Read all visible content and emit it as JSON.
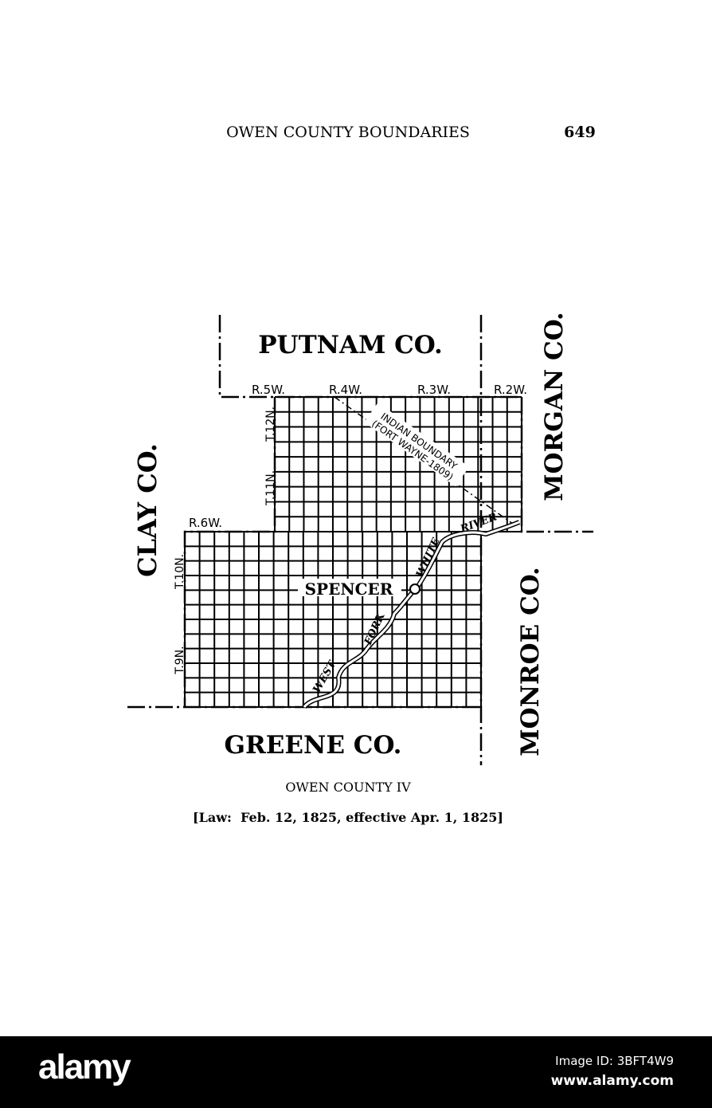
{
  "header": {
    "title": "OWEN COUNTY BOUNDARIES",
    "page_number": "649"
  },
  "map": {
    "counties": {
      "north": "PUTNAM CO.",
      "west": "CLAY CO.",
      "east_upper": "MORGAN CO.",
      "east_lower": "MONROE CO.",
      "south": "GREENE CO."
    },
    "ranges": [
      "R.6W.",
      "R.5W.",
      "R.4W.",
      "R.3W.",
      "R.2W."
    ],
    "townships": [
      "T.12N.",
      "T.11N.",
      "T.10N.",
      "T.9N."
    ],
    "town": "SPENCER",
    "indian_boundary": {
      "line1": "INDIAN BOUNDARY",
      "line2": "(FORT WAYNE-1809)"
    },
    "river_labels": [
      "WEST",
      "FORK",
      "WHITE",
      "RIVER"
    ]
  },
  "caption": {
    "title": "OWEN COUNTY IV",
    "law": "[Law:  Feb. 12, 1825, effective Apr. 1, 1825]"
  },
  "watermark": {
    "logo": "alamy",
    "image_id": "Image ID: 3BFT4W9",
    "url": "www.alamy.com"
  }
}
